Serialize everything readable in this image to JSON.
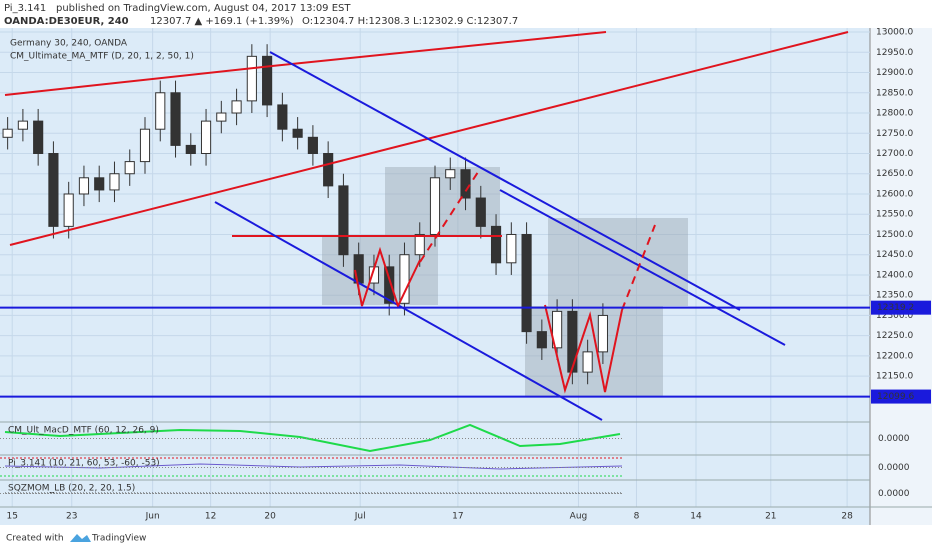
{
  "chart_data": {
    "type": "candlestick",
    "publisher": "Pi_3.141",
    "published": "published on TradingView.com, August 04, 2017 13:09 EST",
    "symbol": "OANDA:DE30EUR, 240",
    "quote": "12307.7 ▲ +169.1 (+1.39%)",
    "ohlc_text": "O:12304.7 H:12308.3 L:12302.9 C:12307.7",
    "title": "Germany 30, 240, OANDA",
    "overlay": "CM_Ultimate_MA_MTF (D, 20, 1, 2, 50, 1)",
    "open": [
      12740,
      12760,
      12780,
      12700,
      12520,
      12600,
      12640,
      12610,
      12650,
      12680,
      12760,
      12850,
      12720,
      12700,
      12780,
      12800,
      12830,
      12940,
      12820,
      12760,
      12740,
      12700,
      12620,
      12450,
      12380,
      12420,
      12330,
      12450,
      12500,
      12640,
      12660,
      12590,
      12520,
      12430,
      12500,
      12260,
      12220,
      12310,
      12160,
      12210
    ],
    "high": [
      12790,
      12810,
      12810,
      12730,
      12630,
      12670,
      12670,
      12680,
      12710,
      12790,
      12880,
      12880,
      12750,
      12810,
      12830,
      12860,
      12970,
      12970,
      12850,
      12790,
      12770,
      12730,
      12650,
      12480,
      12450,
      12450,
      12480,
      12530,
      12670,
      12690,
      12690,
      12620,
      12550,
      12530,
      12530,
      12290,
      12340,
      12340,
      12240,
      12330
    ],
    "low": [
      12710,
      12730,
      12670,
      12490,
      12490,
      12570,
      12580,
      12580,
      12620,
      12650,
      12730,
      12690,
      12670,
      12670,
      12750,
      12770,
      12800,
      12790,
      12730,
      12710,
      12670,
      12590,
      12420,
      12350,
      12350,
      12300,
      12300,
      12420,
      12470,
      12610,
      12560,
      12490,
      12400,
      12400,
      12230,
      12190,
      12190,
      12130,
      12130,
      12180
    ],
    "close": [
      12760,
      12780,
      12700,
      12520,
      12600,
      12640,
      12610,
      12650,
      12680,
      12760,
      12850,
      12720,
      12700,
      12780,
      12800,
      12830,
      12940,
      12820,
      12760,
      12740,
      12700,
      12620,
      12450,
      12380,
      12420,
      12330,
      12450,
      12500,
      12640,
      12660,
      12590,
      12520,
      12430,
      12500,
      12260,
      12220,
      12310,
      12160,
      12210,
      12300
    ],
    "up_color": "#ffffff",
    "down_color": "#333333",
    "ylim": [
      12059,
      13010
    ],
    "yticks": [
      {
        "value": 13000,
        "label": "13000.0"
      },
      {
        "value": 12950,
        "label": "12950.0"
      },
      {
        "value": 12900,
        "label": "12900.0"
      },
      {
        "value": 12850,
        "label": "12850.0"
      },
      {
        "value": 12800,
        "label": "12800.0"
      },
      {
        "value": 12750,
        "label": "12750.0"
      },
      {
        "value": 12700,
        "label": "12700.0"
      },
      {
        "value": 12650,
        "label": "12650.0"
      },
      {
        "value": 12600,
        "label": "12600.0"
      },
      {
        "value": 12550,
        "label": "12550.0"
      },
      {
        "value": 12500,
        "label": "12500.0"
      },
      {
        "value": 12450,
        "label": "12450.0"
      },
      {
        "value": 12400,
        "label": "12400.0"
      },
      {
        "value": 12350,
        "label": "12350.0"
      },
      {
        "value": 12300,
        "label": "12300.0"
      },
      {
        "value": 12250,
        "label": "12250.0"
      },
      {
        "value": 12200,
        "label": "12200.0"
      },
      {
        "value": 12150,
        "label": "12150.0"
      }
    ],
    "levels": [
      12319.2,
      12099.6
    ],
    "xlim": [
      -0.5,
      56.5
    ],
    "xticks": [
      {
        "value": 0.3,
        "label": "15"
      },
      {
        "value": 4.2,
        "label": "23"
      },
      {
        "value": 9.5,
        "label": "Jun"
      },
      {
        "value": 13.3,
        "label": "12"
      },
      {
        "value": 17.2,
        "label": "20"
      },
      {
        "value": 23.1,
        "label": "Jul"
      },
      {
        "value": 29.5,
        "label": "17"
      },
      {
        "value": 37.4,
        "label": "Aug"
      },
      {
        "value": 41.2,
        "label": "8"
      },
      {
        "value": 45.1,
        "label": "14"
      },
      {
        "value": 50,
        "label": "21"
      },
      {
        "value": 55,
        "label": "28"
      }
    ],
    "indicators": [
      {
        "name": "CM_Ult_MacD_MTF (60, 12, 26, 9)",
        "zero": {
          "value": 0,
          "label": "0.0000"
        }
      },
      {
        "name": "Pi_3.141 (10, 21, 60, 53, -60, -53)",
        "zero": {
          "value": 0,
          "label": "0.0000"
        }
      },
      {
        "name": "SQZMOM_LB (20, 2, 20, 1.5)",
        "zero": {
          "value": 0,
          "label": "0.0000"
        }
      }
    ],
    "footer": "Created with",
    "brand": "TradingView"
  }
}
